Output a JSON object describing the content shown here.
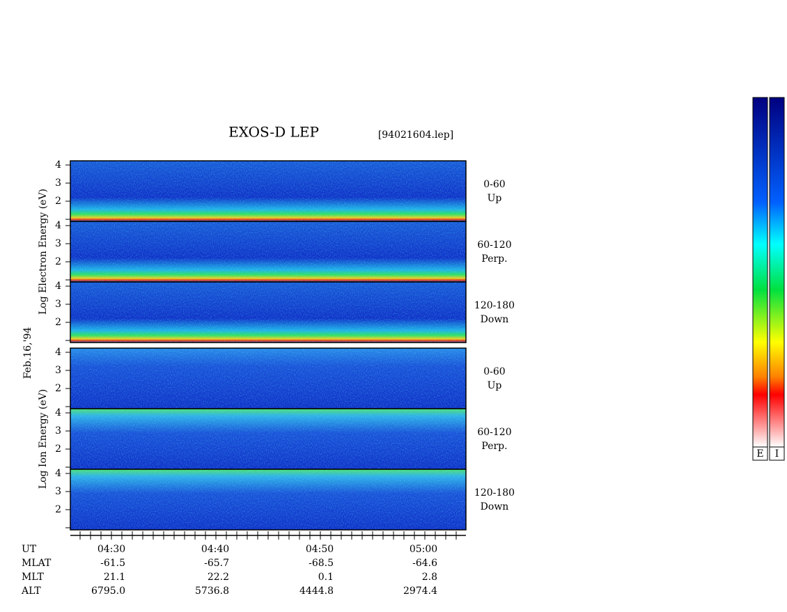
{
  "title": "EXOS-D LEP",
  "file": "[94021604.lep]",
  "date": "Feb.16,'94",
  "groups": [
    {
      "label": "Log Electron Energy (eV)",
      "panels": [
        {
          "range": "0-60",
          "direction": "Up",
          "yticks": [
            "4",
            "3",
            "2"
          ]
        },
        {
          "range": "60-120",
          "direction": "Perp.",
          "yticks": [
            "4",
            "3",
            "2"
          ]
        },
        {
          "range": "120-180",
          "direction": "Down",
          "yticks": [
            "4",
            "3",
            "2"
          ]
        }
      ]
    },
    {
      "label": "Log Ion Energy (eV)",
      "panels": [
        {
          "range": "0-60",
          "direction": "Up",
          "yticks": [
            "4",
            "3",
            "2"
          ]
        },
        {
          "range": "60-120",
          "direction": "Perp.",
          "yticks": [
            "4",
            "3",
            "2"
          ]
        },
        {
          "range": "120-180",
          "direction": "Down",
          "yticks": [
            "4",
            "3",
            "2"
          ]
        }
      ]
    }
  ],
  "axis": {
    "row_labels": [
      "UT",
      "MLAT",
      "MLT",
      "ALT"
    ],
    "columns": [
      [
        "04:30",
        "-61.5",
        "21.1",
        "6795.0"
      ],
      [
        "04:40",
        "-65.7",
        "22.2",
        "5736.8"
      ],
      [
        "04:50",
        "-68.5",
        "0.1",
        "4444.8"
      ],
      [
        "05:00",
        "-64.6",
        "2.8",
        "2974.4"
      ]
    ]
  },
  "colorbars": [
    "E",
    "I"
  ]
}
